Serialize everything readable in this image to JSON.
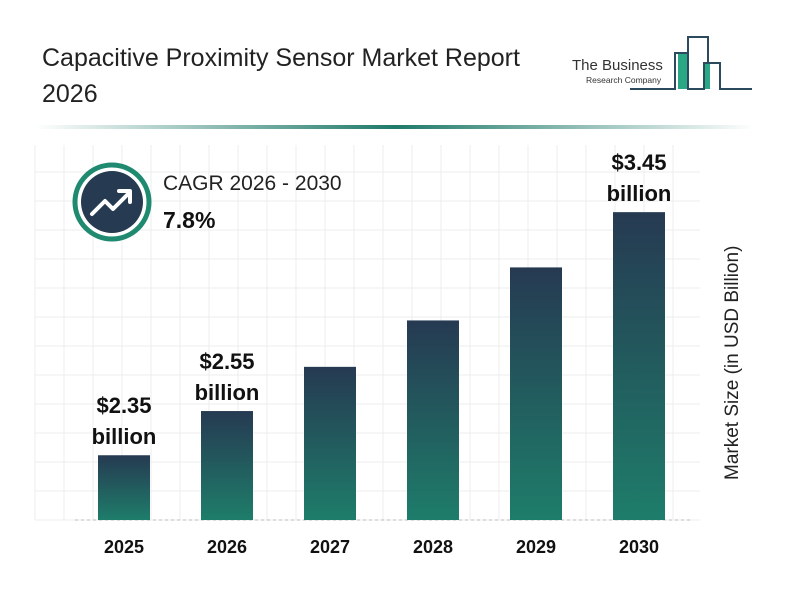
{
  "header": {
    "title": "Capacitive Proximity Sensor Market Report 2026"
  },
  "logo": {
    "line1": "The Business",
    "line2": "Research Company"
  },
  "cagr": {
    "label": "CAGR 2026 - 2030",
    "value": "7.8%",
    "icon": "trending-up-icon"
  },
  "colors": {
    "bar_top": "#263a52",
    "bar_bottom": "#1e7d6a",
    "accent": "#1f7a6a",
    "icon_bg": "#263a52"
  },
  "chart_data": {
    "type": "bar",
    "categories": [
      "2025",
      "2026",
      "2027",
      "2028",
      "2029",
      "2030"
    ],
    "values": [
      2.35,
      2.55,
      2.75,
      2.96,
      3.2,
      3.45
    ],
    "data_labels": [
      "$2.35\nbillion",
      "$2.55\nbillion",
      "",
      "",
      "",
      "$3.45\nbillion"
    ],
    "title": "Capacitive Proximity Sensor Market Report 2026",
    "xlabel": "",
    "ylabel": "Market Size (in USD Billion)",
    "grid": true
  }
}
